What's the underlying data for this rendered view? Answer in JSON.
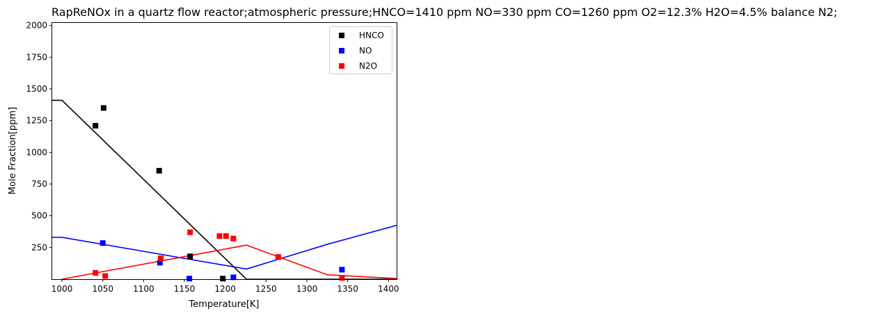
{
  "chart_data": {
    "type": "scatter",
    "title": "RapReNOx in a quartz flow reactor;atmospheric pressure;HNCO=1410 ppm NO=330 ppm CO=1260 ppm O2=12.3% H2O=4.5% balance N2;",
    "xlabel": "Temperature[K]",
    "ylabel": "Mole Fraction[ppm]",
    "xlim": [
      988,
      1410
    ],
    "ylim": [
      0,
      2020
    ],
    "xticks": [
      1000,
      1050,
      1100,
      1150,
      1200,
      1250,
      1300,
      1350,
      1400
    ],
    "yticks": [
      250,
      500,
      750,
      1000,
      1250,
      1500,
      1750,
      2000
    ],
    "grid": false,
    "legend_position": "top-right",
    "series": [
      {
        "name": "HNCO",
        "color": "#000000",
        "points": [
          [
            1041,
            1210
          ],
          [
            1051,
            1350
          ],
          [
            1119,
            855
          ],
          [
            1157,
            180
          ],
          [
            1197,
            5
          ]
        ],
        "line": [
          [
            988,
            1410
          ],
          [
            1000,
            1410
          ],
          [
            1226,
            0
          ],
          [
            1410,
            0
          ]
        ]
      },
      {
        "name": "NO",
        "color": "#0000ff",
        "points": [
          [
            1050,
            285
          ],
          [
            1120,
            130
          ],
          [
            1156,
            5
          ],
          [
            1210,
            15
          ],
          [
            1343,
            75
          ]
        ],
        "line": [
          [
            988,
            330
          ],
          [
            1000,
            330
          ],
          [
            1226,
            80
          ],
          [
            1325,
            275
          ],
          [
            1410,
            425
          ]
        ]
      },
      {
        "name": "N2O",
        "color": "#ff0000",
        "points": [
          [
            1041,
            50
          ],
          [
            1053,
            25
          ],
          [
            1121,
            165
          ],
          [
            1157,
            370
          ],
          [
            1193,
            340
          ],
          [
            1201,
            340
          ],
          [
            1210,
            320
          ],
          [
            1265,
            175
          ],
          [
            1343,
            10
          ]
        ],
        "line": [
          [
            1000,
            0
          ],
          [
            1226,
            268
          ],
          [
            1325,
            35
          ],
          [
            1410,
            5
          ]
        ]
      }
    ]
  }
}
